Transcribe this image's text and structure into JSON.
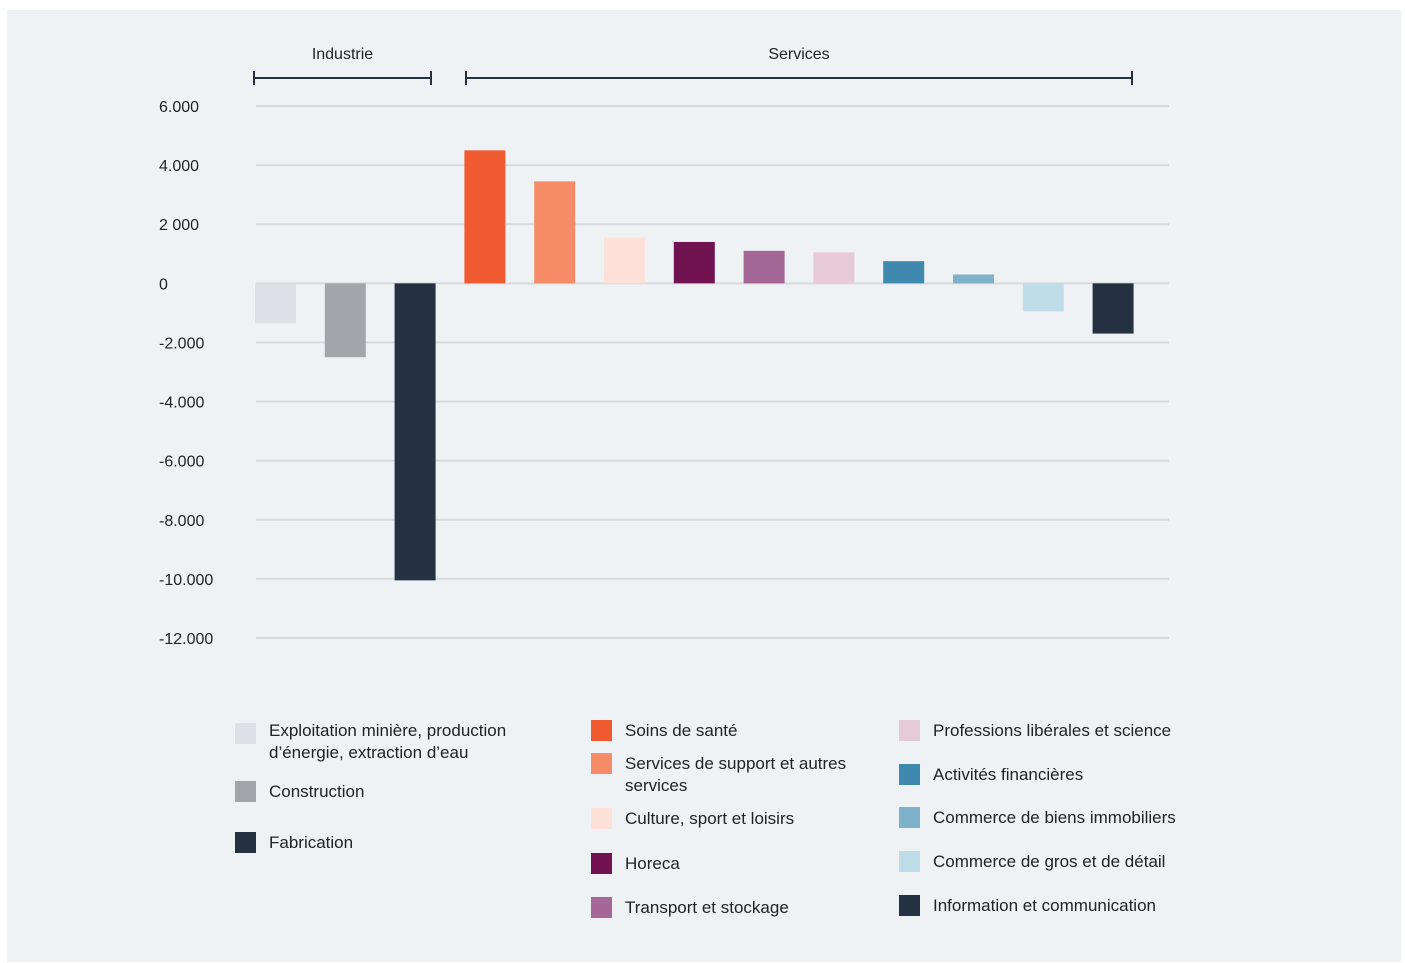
{
  "chart_data": {
    "type": "bar",
    "groups": [
      {
        "label": "Industrie",
        "from": 0,
        "to": 2
      },
      {
        "label": "Services",
        "from": 3,
        "to": 12
      }
    ],
    "categories": [
      "Exploitation minière, production d’énergie, extraction d’eau",
      "Construction",
      "Fabrication",
      "Soins de santé",
      "Services de support et autres services",
      "Culture, sport et loisirs",
      "Horeca",
      "Transport et stockage",
      "Professions libérales et science",
      "Activités financières",
      "Commerce de biens immobiliers",
      "Commerce de gros et de détail",
      "Information et communication"
    ],
    "values": [
      -1350,
      -2500,
      -10050,
      4500,
      3450,
      1550,
      1400,
      1100,
      1050,
      750,
      300,
      -950,
      -1700
    ],
    "colors": [
      "#dde0e6",
      "#a2a5aa",
      "#253140",
      "#f05a30",
      "#f58b67",
      "#fde0d7",
      "#721351",
      "#a56796",
      "#e7cad8",
      "#3f89ae",
      "#7eb2cb",
      "#bfdde8",
      "#253140"
    ],
    "yticks": [
      {
        "value": 6000,
        "label": "6.000"
      },
      {
        "value": 4000,
        "label": "4.000"
      },
      {
        "value": 2000,
        "label": "2 000"
      },
      {
        "value": 0,
        "label": "0"
      },
      {
        "value": -2000,
        "label": "-2.000"
      },
      {
        "value": -4000,
        "label": "-4.000"
      },
      {
        "value": -6000,
        "label": "-6.000"
      },
      {
        "value": -8000,
        "label": "-8.000"
      },
      {
        "value": -10000,
        "label": "-10.000"
      },
      {
        "value": -12000,
        "label": "-12.000"
      }
    ],
    "ylim": [
      -12000,
      6000
    ],
    "grid": true,
    "legend_position": "bottom"
  },
  "legend": [
    {
      "label": "Exploitation minière, production d’énergie, extraction d’eau",
      "color": "#dde0e6"
    },
    {
      "label": "Construction",
      "color": "#a2a5aa"
    },
    {
      "label": "Fabrication",
      "color": "#253140"
    },
    {
      "label": "Soins de santé",
      "color": "#f05a30"
    },
    {
      "label": "Services de support et autres services",
      "color": "#f58b67"
    },
    {
      "label": "Culture, sport et loisirs",
      "color": "#fde0d7"
    },
    {
      "label": "Horeca",
      "color": "#721351"
    },
    {
      "label": "Transport et stockage",
      "color": "#a56796"
    },
    {
      "label": "Professions libérales et science",
      "color": "#e7cad8"
    },
    {
      "label": "Activités financières",
      "color": "#3f89ae"
    },
    {
      "label": "Commerce de biens immobiliers",
      "color": "#7eb2cb"
    },
    {
      "label": "Commerce de gros et de détail",
      "color": "#bfdde8"
    },
    {
      "label": "Information et communication",
      "color": "#253140"
    }
  ]
}
